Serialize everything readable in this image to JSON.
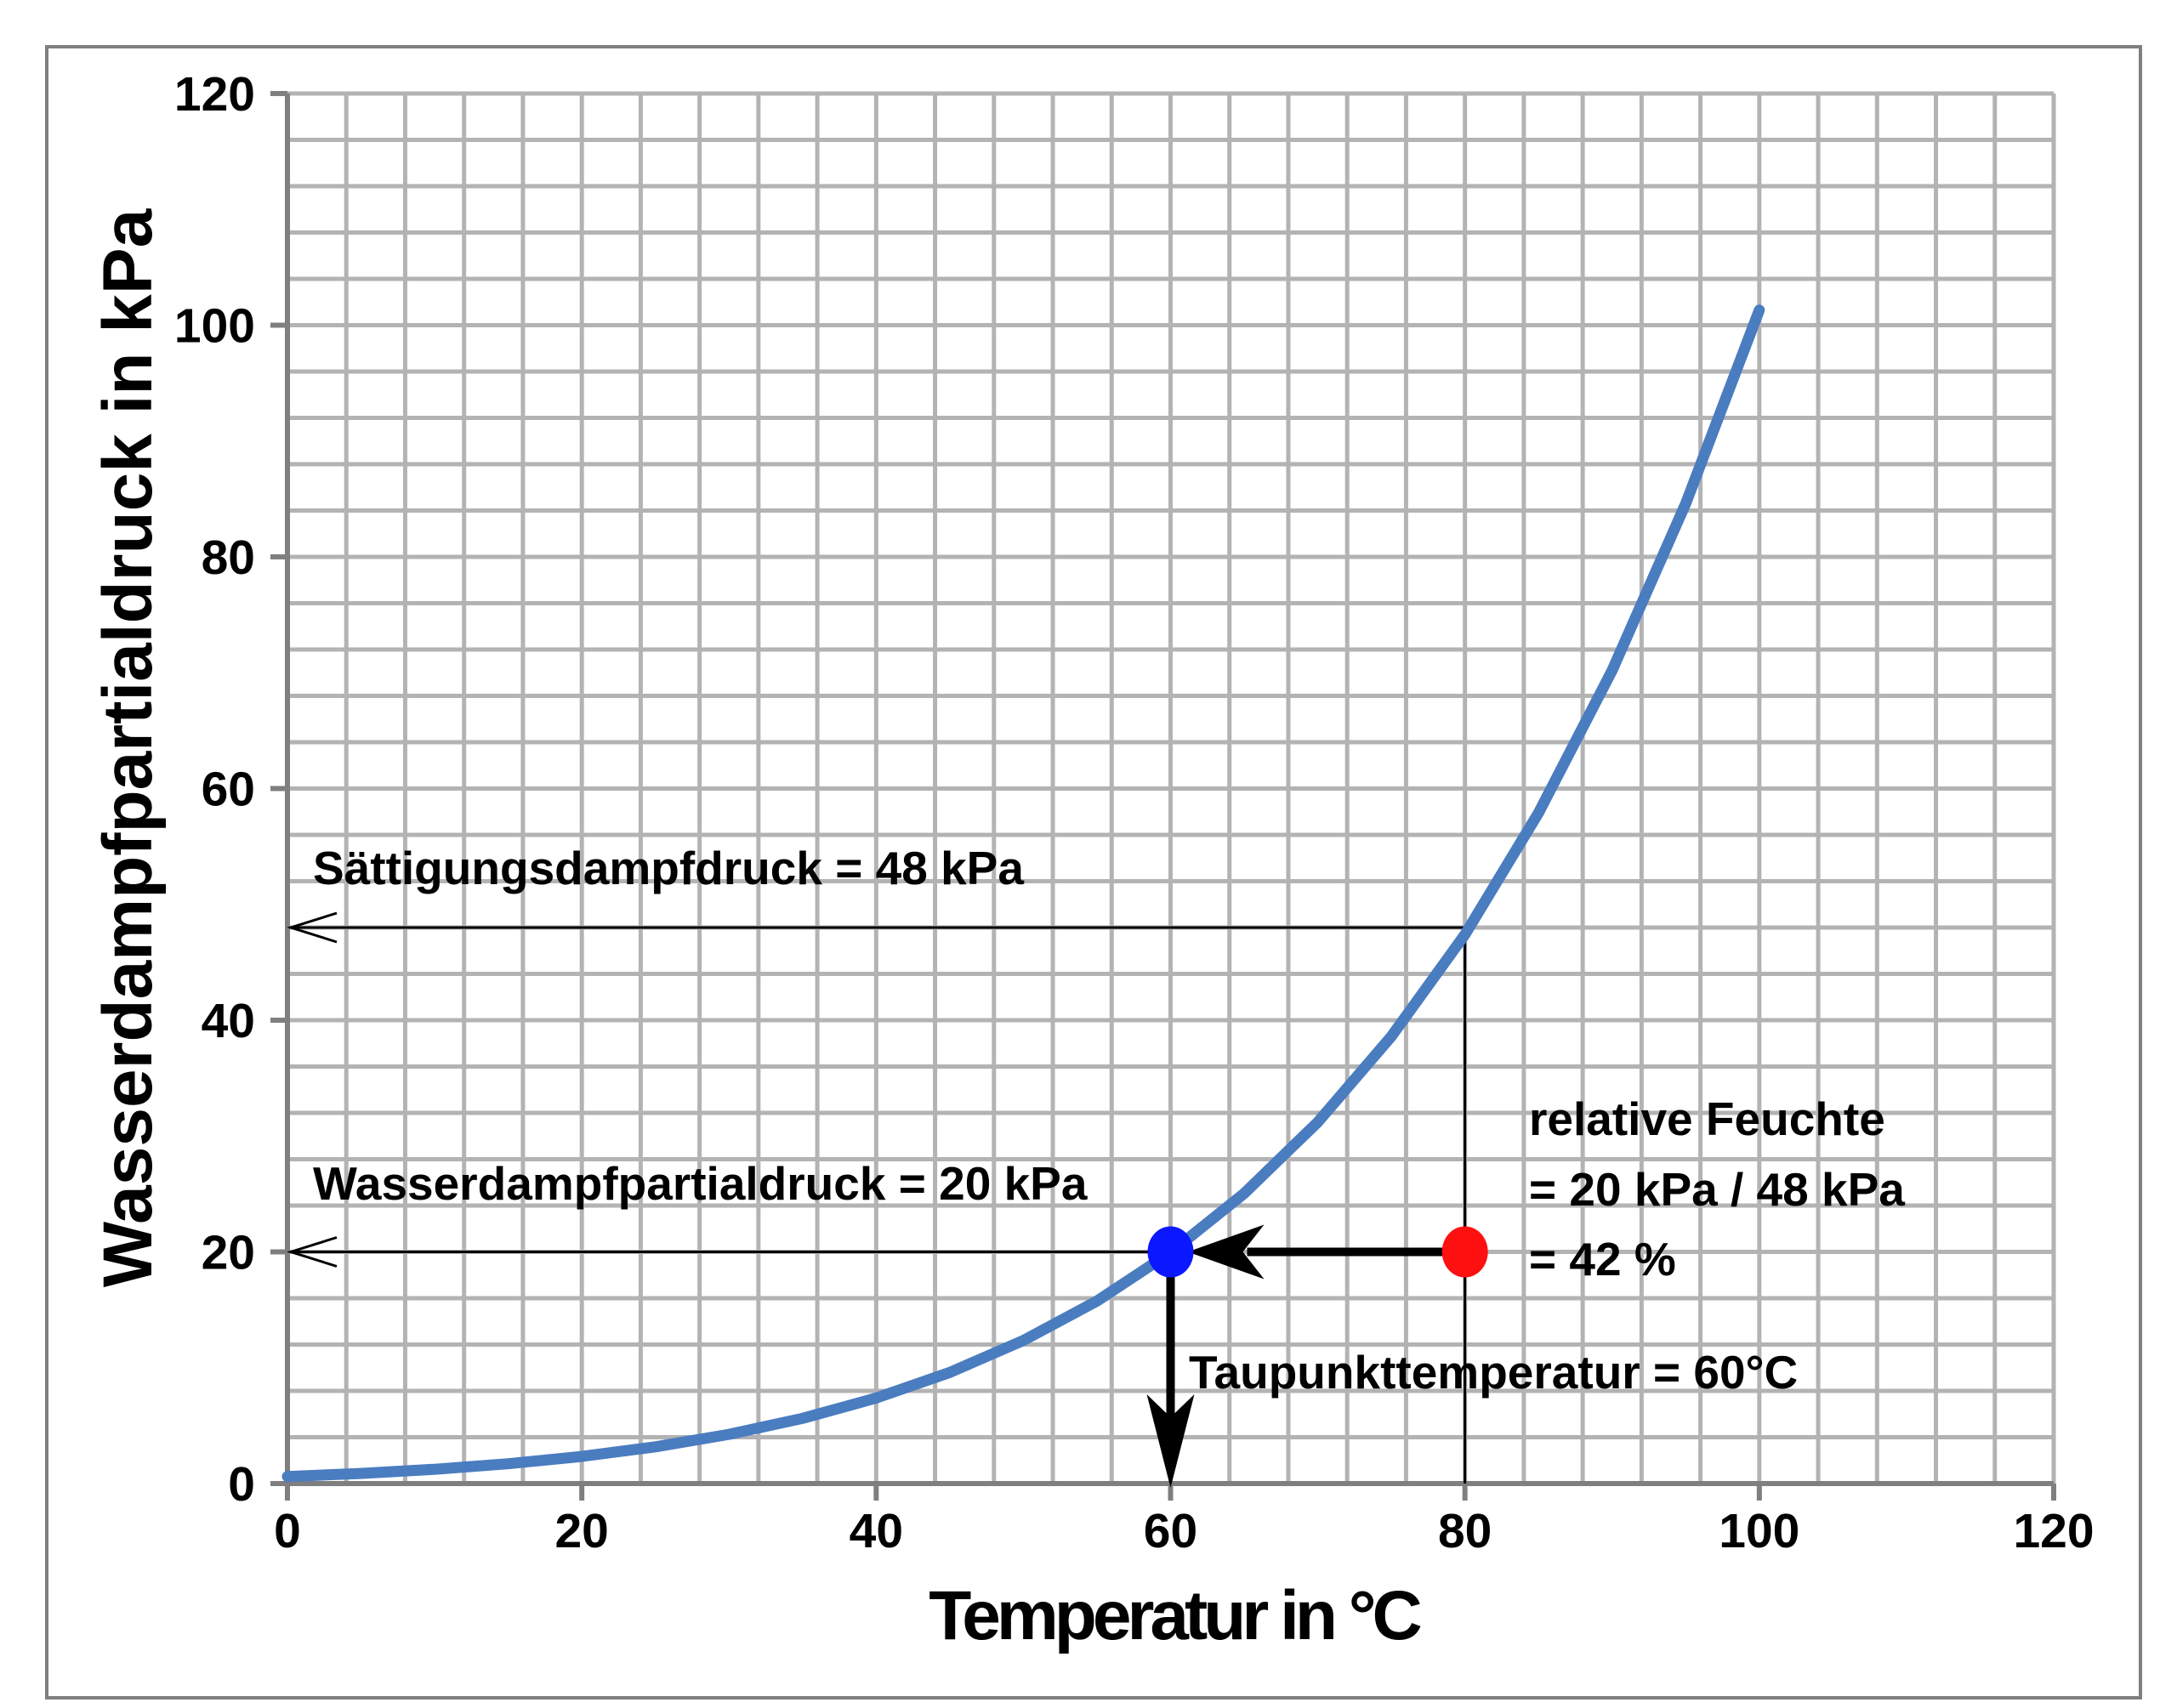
{
  "chart_data": {
    "type": "line",
    "title": "",
    "xlabel": "Temperatur in °C",
    "ylabel": "Wasserdampfpartialdruck in kPa",
    "xlim": [
      0,
      120
    ],
    "ylim": [
      0,
      120
    ],
    "x_ticks": [
      0,
      20,
      40,
      60,
      80,
      100,
      120
    ],
    "y_ticks": [
      0,
      20,
      40,
      60,
      80,
      100,
      120
    ],
    "x_tick_labels": [
      "0",
      "20",
      "40",
      "60",
      "80",
      "100",
      "120"
    ],
    "y_tick_labels": [
      "0",
      "20",
      "40",
      "60",
      "80",
      "100",
      "120"
    ],
    "grid": true,
    "grid_minor_step": 4,
    "series": [
      {
        "name": "",
        "color": "#4a7cc0",
        "x": [
          0,
          5,
          10,
          15,
          20,
          25,
          30,
          35,
          40,
          45,
          50,
          55,
          60,
          65,
          70,
          75,
          80,
          85,
          90,
          95,
          100
        ],
        "y": [
          0.61,
          0.87,
          1.23,
          1.71,
          2.34,
          3.17,
          4.25,
          5.63,
          7.38,
          9.59,
          12.35,
          15.76,
          19.95,
          25.04,
          31.2,
          38.6,
          47.4,
          57.9,
          70.2,
          84.6,
          101.3
        ]
      }
    ],
    "markers": [
      {
        "name": "dew-point",
        "x": 60,
        "y": 20,
        "color": "#0a17ff"
      },
      {
        "name": "current-state",
        "x": 80,
        "y": 20,
        "color": "#ff1010"
      }
    ],
    "annotations": {
      "saturation": "Sättigungsdampfdruck = 48 kPa",
      "partial": "Wasserdampfpartialdruck = 20 kPa",
      "rh_line1": "relative Feuchte",
      "rh_line2": "= 20 kPa / 48 kPa",
      "rh_line3": "= 42 %",
      "dewpoint": "Taupunkttemperatur = 60°C"
    },
    "reference_values": {
      "saturation_pressure": 48,
      "partial_pressure": 20,
      "air_temperature": 80,
      "dew_point_temperature": 60
    }
  }
}
